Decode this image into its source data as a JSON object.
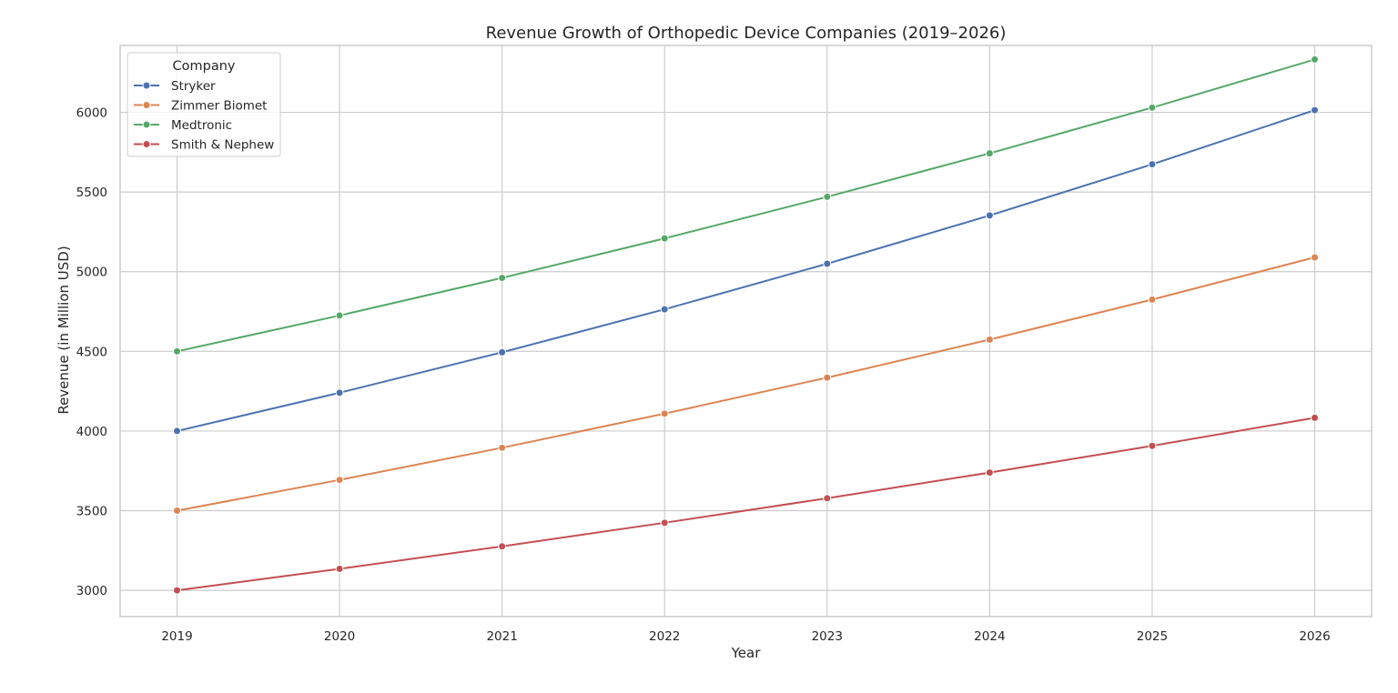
{
  "chart_data": {
    "type": "line",
    "title": "Revenue Growth of Orthopedic Device Companies (2019–2026)",
    "xlabel": "Year",
    "ylabel": "Revenue (in Million USD)",
    "x": [
      2019,
      2020,
      2021,
      2022,
      2023,
      2024,
      2025,
      2026
    ],
    "x_tick_labels": [
      "2019",
      "2020",
      "2021",
      "2022",
      "2023",
      "2024",
      "2025",
      "2026"
    ],
    "xlim": [
      2018.65,
      2026.35
    ],
    "ylim": [
      2835,
      6420
    ],
    "y_ticks": [
      3000,
      3500,
      4000,
      4500,
      5000,
      5500,
      6000
    ],
    "y_tick_labels": [
      "3000",
      "3500",
      "4000",
      "4500",
      "5000",
      "5500",
      "6000"
    ],
    "grid": true,
    "legend": {
      "title": "Company",
      "placement": "top-left"
    },
    "series": [
      {
        "name": "Stryker",
        "color": "#4c72b0",
        "values": [
          4000,
          4240,
          4494,
          4764,
          5050,
          5353,
          5674,
          6014
        ]
      },
      {
        "name": "Zimmer Biomet",
        "color": "#dd8452",
        "values": [
          3500,
          3693,
          3895,
          4109,
          4335,
          4574,
          4825,
          5090
        ]
      },
      {
        "name": "Medtronic",
        "color": "#55a868",
        "values": [
          4500,
          4725,
          4961,
          5209,
          5470,
          5743,
          6030,
          6332
        ]
      },
      {
        "name": "Smith & Nephew",
        "color": "#c44e52",
        "values": [
          3000,
          3135,
          3276,
          3424,
          3578,
          3739,
          3907,
          4083
        ]
      }
    ]
  }
}
